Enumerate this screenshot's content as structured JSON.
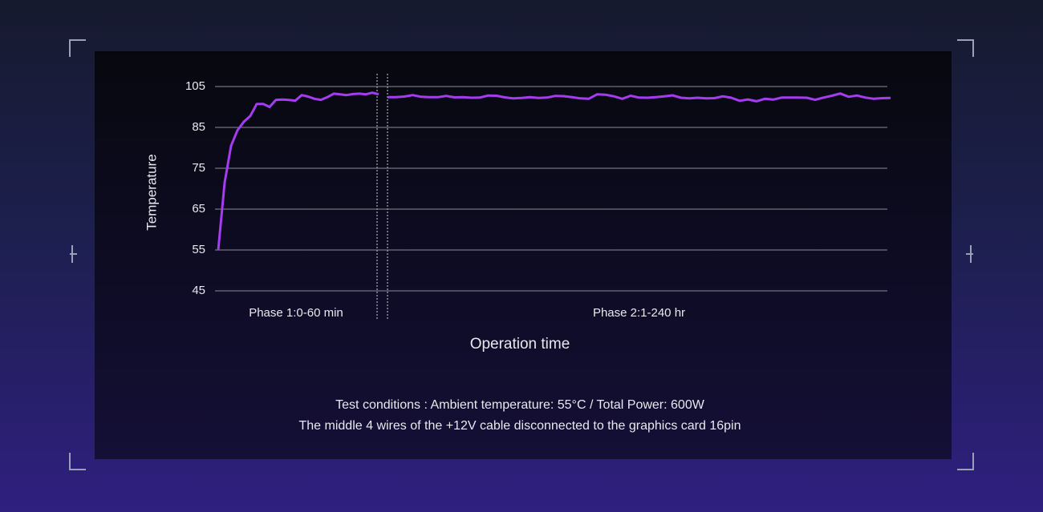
{
  "chart_data": {
    "type": "line",
    "y_label": "Temperature",
    "x_label": "Operation time",
    "notes": [
      "Test conditions : Ambient temperature: 55°C / Total Power: 600W",
      "The middle 4 wires of the +12V cable disconnected to the graphics card 16pin"
    ],
    "ylim": [
      45,
      105
    ],
    "yticks": [
      45,
      55,
      65,
      75,
      85,
      105
    ],
    "grid": true,
    "series": [
      {
        "name": "Phase 1:0-60 min",
        "color": "#a63cf0",
        "values": [
          55,
          71.5,
          80.5,
          84.3,
          87.8,
          90.6,
          96.5,
          96.5,
          95,
          98.5,
          98.6,
          98.4,
          98.1,
          100.8,
          100.1,
          99,
          98.5,
          99.8,
          101.5,
          101.2,
          100.8,
          101.3,
          101.5,
          101.2,
          102,
          101.2
        ]
      },
      {
        "name": "Phase 2:1-240 hr",
        "color": "#a63cf0",
        "values": [
          99.8,
          99.8,
          100.1,
          100.8,
          100,
          99.8,
          99.8,
          100.4,
          99.7,
          99.8,
          99.5,
          99.6,
          100.6,
          100.5,
          99.7,
          99.2,
          99.4,
          99.8,
          99.4,
          99.6,
          100.4,
          100.3,
          99.8,
          99.2,
          99,
          101.2,
          101,
          100.2,
          99,
          100.5,
          99.6,
          99.5,
          99.8,
          100.2,
          100.7,
          99.5,
          99.2,
          99.5,
          99.2,
          99.3,
          100.2,
          99.5,
          98,
          98.7,
          97.8,
          99,
          98.6,
          99.6,
          99.6,
          99.6,
          99.5,
          98.5,
          99.6,
          100.5,
          101.6,
          100,
          100.6,
          99.6,
          99,
          99.3,
          99.4
        ]
      }
    ]
  }
}
